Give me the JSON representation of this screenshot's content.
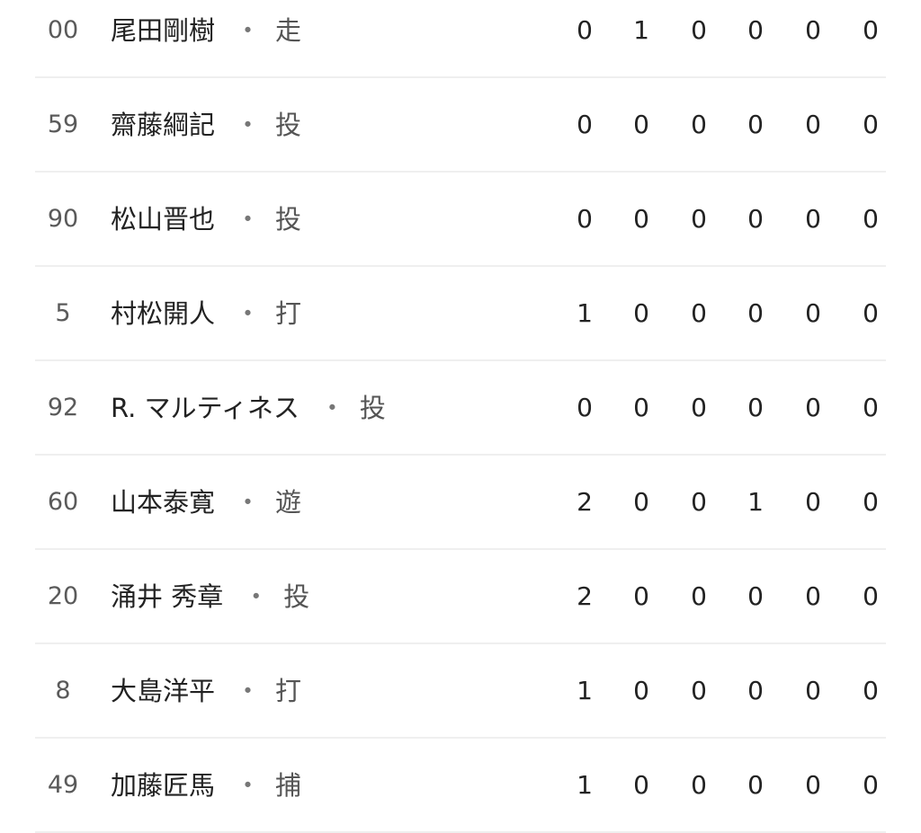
{
  "players": [
    {
      "number": "00",
      "name": "尾田剛樹",
      "position": "走",
      "stats": [
        "0",
        "1",
        "0",
        "0",
        "0",
        "0"
      ]
    },
    {
      "number": "59",
      "name": "齋藤綱記",
      "position": "投",
      "stats": [
        "0",
        "0",
        "0",
        "0",
        "0",
        "0"
      ]
    },
    {
      "number": "90",
      "name": "松山晋也",
      "position": "投",
      "stats": [
        "0",
        "0",
        "0",
        "0",
        "0",
        "0"
      ]
    },
    {
      "number": "5",
      "name": "村松開人",
      "position": "打",
      "stats": [
        "1",
        "0",
        "0",
        "0",
        "0",
        "0"
      ]
    },
    {
      "number": "92",
      "name": "R. マルティネス",
      "position": "投",
      "stats": [
        "0",
        "0",
        "0",
        "0",
        "0",
        "0"
      ]
    },
    {
      "number": "60",
      "name": "山本泰寛",
      "position": "遊",
      "stats": [
        "2",
        "0",
        "0",
        "1",
        "0",
        "0"
      ]
    },
    {
      "number": "20",
      "name": "涌井 秀章",
      "position": "投",
      "stats": [
        "2",
        "0",
        "0",
        "0",
        "0",
        "0"
      ]
    },
    {
      "number": "8",
      "name": "大島洋平",
      "position": "打",
      "stats": [
        "1",
        "0",
        "0",
        "0",
        "0",
        "0"
      ]
    },
    {
      "number": "49",
      "name": "加藤匠馬",
      "position": "捕",
      "stats": [
        "1",
        "0",
        "0",
        "0",
        "0",
        "0"
      ]
    }
  ],
  "separator": "・"
}
